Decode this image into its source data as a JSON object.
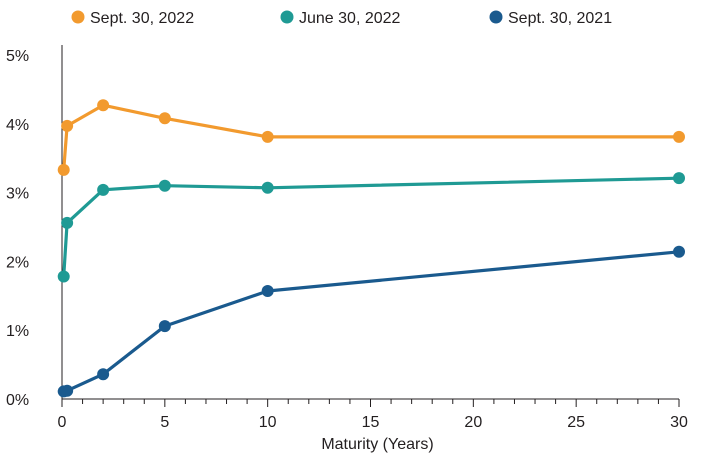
{
  "chart_data": {
    "type": "line",
    "xlabel": "Maturity (Years)",
    "ylabel": "",
    "xlim": [
      0,
      30
    ],
    "ylim": [
      0,
      5
    ],
    "x_ticks": [
      0,
      5,
      10,
      15,
      20,
      25,
      30
    ],
    "x_tick_labels": [
      "0",
      "5",
      "10",
      "15",
      "20",
      "25",
      "30"
    ],
    "y_ticks": [
      0,
      1,
      2,
      3,
      4,
      5
    ],
    "y_tick_labels": [
      "0%",
      "1%",
      "2%",
      "3%",
      "4%",
      "5%"
    ],
    "grid": false,
    "legend_position": "top",
    "series": [
      {
        "name": "Sept. 30, 2022",
        "color": "#f29a2e",
        "x": [
          0.083,
          0.25,
          2,
          5,
          10,
          30
        ],
        "y": [
          3.33,
          3.97,
          4.27,
          4.08,
          3.81,
          3.81
        ]
      },
      {
        "name": "June 30, 2022",
        "color": "#1f9a94",
        "x": [
          0.083,
          0.25,
          2,
          5,
          10,
          30
        ],
        "y": [
          1.78,
          2.56,
          3.04,
          3.1,
          3.07,
          3.21
        ]
      },
      {
        "name": "Sept. 30, 2021",
        "color": "#1a5a8e",
        "x": [
          0.083,
          0.25,
          2,
          5,
          10,
          30
        ],
        "y": [
          0.11,
          0.12,
          0.36,
          1.06,
          1.57,
          2.14
        ]
      }
    ]
  }
}
